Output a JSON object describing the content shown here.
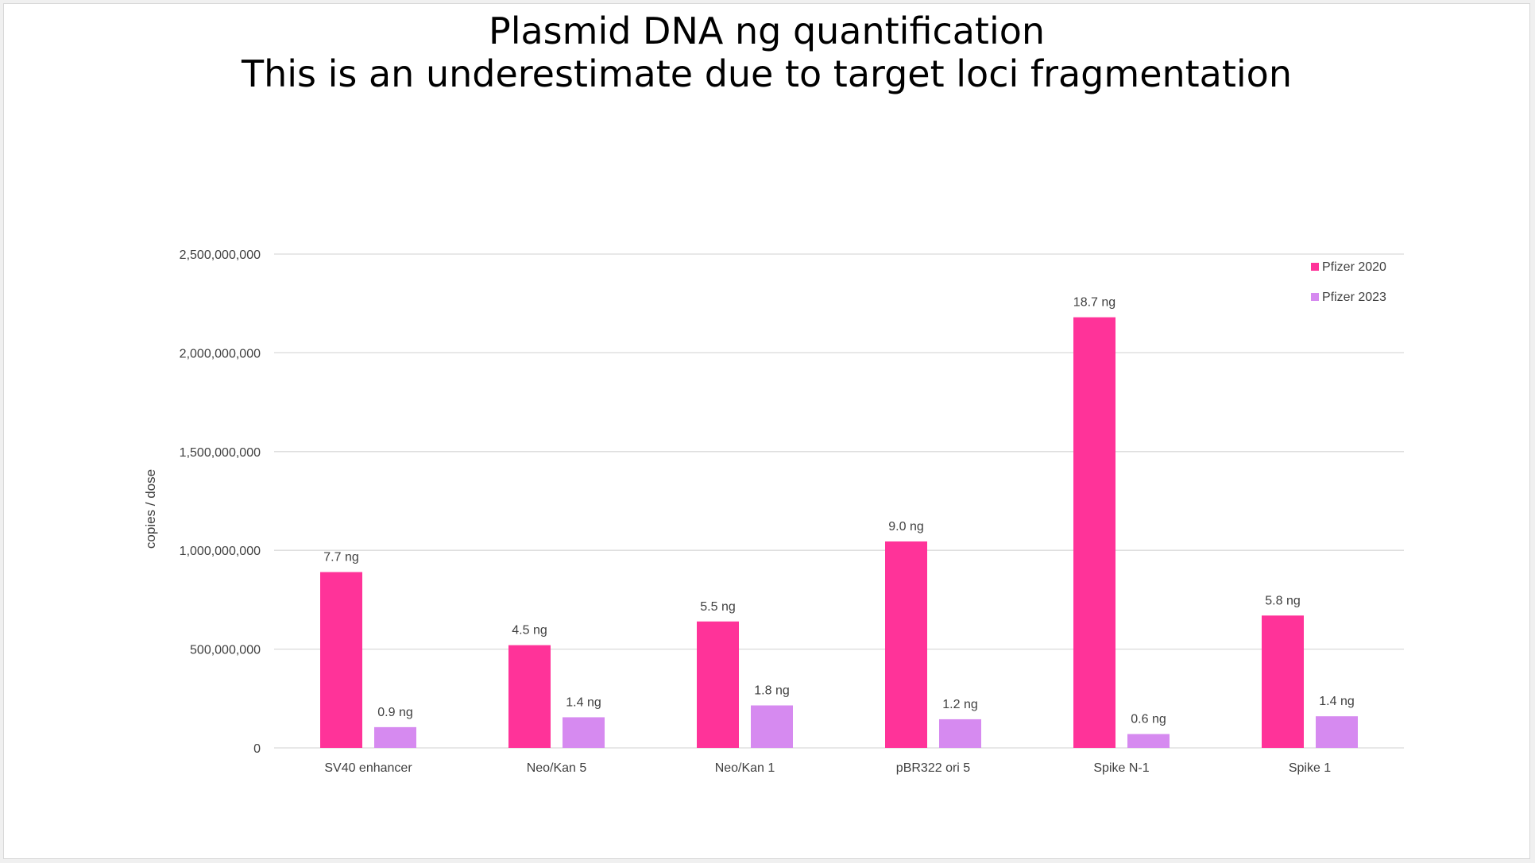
{
  "chart_data": {
    "type": "bar",
    "title": [
      "Plasmid DNA ng quantification",
      "This is an underestimate due to target loci fragmentation"
    ],
    "ylabel": "copies / dose",
    "xlabel": "",
    "ylim": [
      0,
      2500000000
    ],
    "yticks": [
      {
        "value": 0,
        "label": "0"
      },
      {
        "value": 500000000,
        "label": "500,000,000"
      },
      {
        "value": 1000000000,
        "label": "1,000,000,000"
      },
      {
        "value": 1500000000,
        "label": "1,500,000,000"
      },
      {
        "value": 2000000000,
        "label": "2,000,000,000"
      },
      {
        "value": 2500000000,
        "label": "2,500,000,000"
      }
    ],
    "grid": true,
    "legend_position": "top-right",
    "categories": [
      "SV40 enhancer",
      "Neo/Kan 5",
      "Neo/Kan 1",
      "pBR322 ori 5",
      "Spike N-1",
      "Spike 1"
    ],
    "series": [
      {
        "name": "Pfizer 2020",
        "color": "#ff3399",
        "values": [
          890000000,
          520000000,
          640000000,
          1045000000,
          2180000000,
          670000000
        ],
        "data_labels": [
          "7.7 ng",
          "4.5 ng",
          "5.5 ng",
          "9.0 ng",
          "18.7 ng",
          "5.8 ng"
        ]
      },
      {
        "name": "Pfizer 2023",
        "color": "#d68af0",
        "values": [
          105000000,
          155000000,
          215000000,
          145000000,
          70000000,
          160000000
        ],
        "data_labels": [
          "0.9 ng",
          "1.4 ng",
          "1.8 ng",
          "1.2 ng",
          "0.6 ng",
          "1.4 ng"
        ]
      }
    ]
  }
}
